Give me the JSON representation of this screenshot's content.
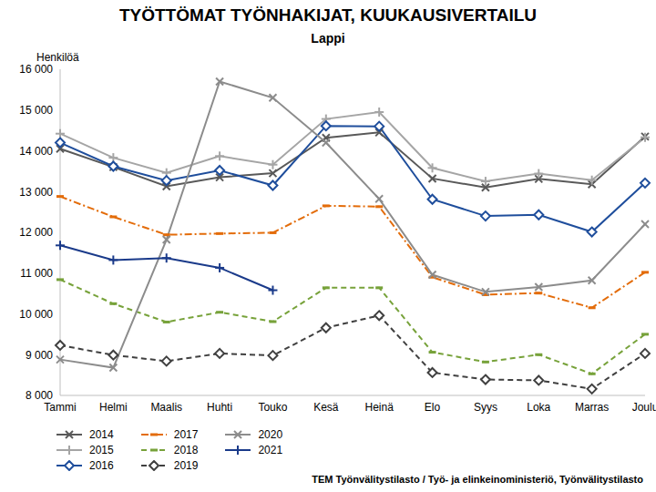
{
  "chart_data": {
    "type": "line",
    "title": "TYÖTTÖMAT TYÖNHAKIJAT, KUUKAUSIVERTAILU",
    "subtitle": "Lappi",
    "y_label": "Henkilöä",
    "annotation": "TEM Työnvälitystilasto / Työ- ja elinkeinoministeriö, Työnvälitystilasto",
    "categories": [
      "Tammi",
      "Helmi",
      "Maalis",
      "Huhti",
      "Touko",
      "Kesä",
      "Heinä",
      "Elo",
      "Syys",
      "Loka",
      "Marras",
      "Joulu"
    ],
    "ylim": [
      8000,
      16000
    ],
    "yticks": [
      {
        "value": 8000,
        "label": "8 000"
      },
      {
        "value": 9000,
        "label": "9 000"
      },
      {
        "value": 10000,
        "label": "10 000"
      },
      {
        "value": 11000,
        "label": "11 000"
      },
      {
        "value": 12000,
        "label": "12 000"
      },
      {
        "value": 13000,
        "label": "13 000"
      },
      {
        "value": 14000,
        "label": "14 000"
      },
      {
        "value": 15000,
        "label": "15 000"
      },
      {
        "value": 16000,
        "label": "16 000"
      }
    ],
    "grid": false,
    "legend": "bottom",
    "series": [
      {
        "name": "2014",
        "color": "#595959",
        "marker": "x",
        "line_style": "solid",
        "values": [
          14050,
          13600,
          13130,
          13350,
          13450,
          14320,
          14450,
          13320,
          13100,
          13310,
          13180,
          14350
        ]
      },
      {
        "name": "2015",
        "color": "#a5a5a5",
        "marker": "plus",
        "line_style": "solid",
        "values": [
          14420,
          13830,
          13460,
          13870,
          13660,
          14780,
          14950,
          13580,
          13250,
          13440,
          13280,
          14330
        ]
      },
      {
        "name": "2016",
        "color": "#1f4e9c",
        "marker": "diamond",
        "line_style": "solid",
        "values": [
          14200,
          13620,
          13270,
          13520,
          13150,
          14610,
          14600,
          12810,
          12400,
          12430,
          12010,
          13210
        ]
      },
      {
        "name": "2017",
        "color": "#e36c0a",
        "marker": "dash",
        "line_style": "dashdot",
        "values": [
          12880,
          12380,
          11940,
          11970,
          11990,
          12650,
          12630,
          10900,
          10470,
          10510,
          10150,
          11020
        ]
      },
      {
        "name": "2018",
        "color": "#77a23a",
        "marker": "dash",
        "line_style": "dashed",
        "values": [
          10840,
          10250,
          9800,
          10040,
          9810,
          10640,
          10640,
          9060,
          8820,
          9000,
          8530,
          9500
        ]
      },
      {
        "name": "2019",
        "color": "#404040",
        "marker": "diamond",
        "line_style": "dashed",
        "values": [
          9230,
          8990,
          8840,
          9030,
          8980,
          9660,
          9960,
          8560,
          8390,
          8370,
          8160,
          9030
        ]
      },
      {
        "name": "2020",
        "color": "#8c8c8c",
        "marker": "x",
        "line_style": "solid",
        "values": [
          8880,
          8680,
          11820,
          15700,
          15300,
          14200,
          12820,
          10960,
          10540,
          10660,
          10820,
          12200
        ]
      },
      {
        "name": "2021",
        "color": "#1a3a8a",
        "marker": "plus",
        "line_style": "solid",
        "values": [
          11680,
          11320,
          11370,
          11130,
          10580,
          null,
          null,
          null,
          null,
          null,
          null,
          null
        ]
      }
    ]
  }
}
